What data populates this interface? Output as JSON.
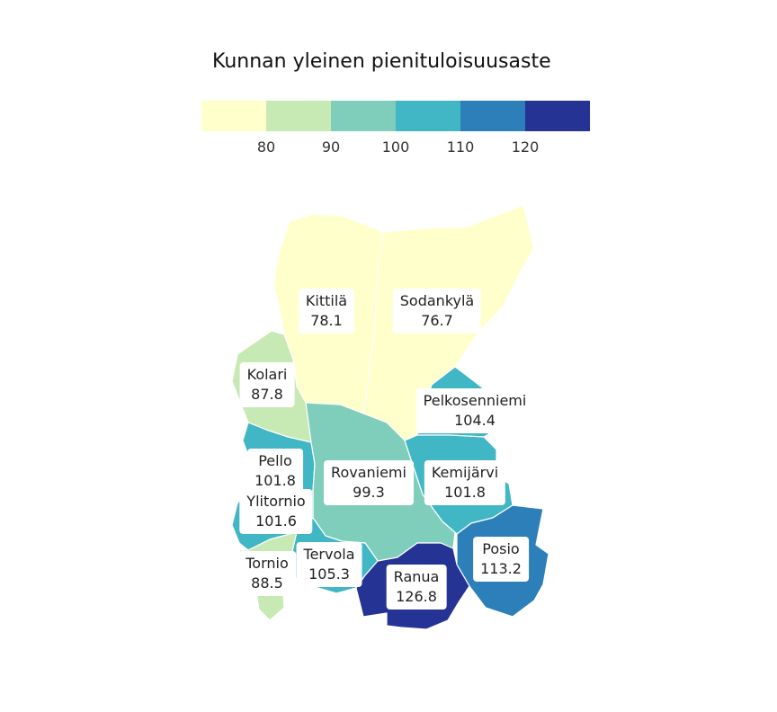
{
  "title": "Kunnan yleinen pienituloisuusaste",
  "legend": {
    "colors": [
      "#ffffcc",
      "#c7e9b4",
      "#7fcdbb",
      "#41b6c4",
      "#2c7fb8",
      "#253494"
    ],
    "ticks": [
      "80",
      "90",
      "100",
      "110",
      "120"
    ]
  },
  "municipalities": [
    {
      "name": "Kittilä",
      "value": "78.1",
      "color": "#ffffcc"
    },
    {
      "name": "Sodankylä",
      "value": "76.7",
      "color": "#ffffcc"
    },
    {
      "name": "Kolari",
      "value": "87.8",
      "color": "#c7e9b4"
    },
    {
      "name": "Pelkosenniemi",
      "value": "104.4",
      "color": "#41b6c4"
    },
    {
      "name": "Pello",
      "value": "101.8",
      "color": "#41b6c4"
    },
    {
      "name": "Rovaniemi",
      "value": "99.3",
      "color": "#7fcdbb"
    },
    {
      "name": "Kemijärvi",
      "value": "101.8",
      "color": "#41b6c4"
    },
    {
      "name": "Ylitornio",
      "value": "101.6",
      "color": "#41b6c4"
    },
    {
      "name": "Posio",
      "value": "113.2",
      "color": "#2c7fb8"
    },
    {
      "name": "Tornio",
      "value": "88.5",
      "color": "#c7e9b4"
    },
    {
      "name": "Tervola",
      "value": "105.3",
      "color": "#41b6c4"
    },
    {
      "name": "Ranua",
      "value": "126.8",
      "color": "#253494"
    }
  ]
}
